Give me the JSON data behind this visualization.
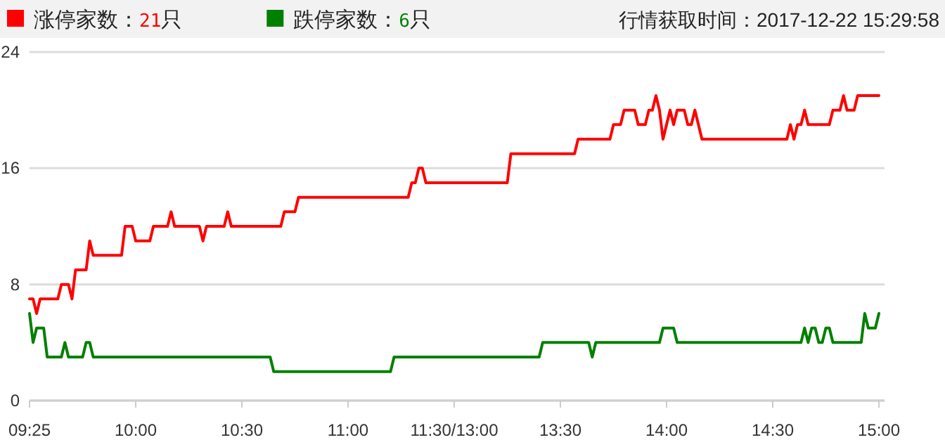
{
  "chart_data": {
    "type": "line",
    "annotations": [
      "行情获取时间：2017-12-22 15:29:58"
    ],
    "categories": [
      "09:25",
      null,
      null,
      null,
      null,
      null,
      null,
      null,
      null,
      null,
      null,
      null,
      null,
      null,
      null,
      null,
      null,
      null,
      null,
      null,
      null,
      null,
      null,
      null,
      null,
      null,
      null,
      null,
      null,
      null,
      "10:00",
      null,
      null,
      null,
      null,
      null,
      null,
      null,
      null,
      null,
      null,
      null,
      null,
      null,
      null,
      null,
      null,
      null,
      null,
      null,
      null,
      null,
      null,
      null,
      null,
      null,
      null,
      null,
      null,
      null,
      "10:30",
      null,
      null,
      null,
      null,
      null,
      null,
      null,
      null,
      null,
      null,
      null,
      null,
      null,
      null,
      null,
      null,
      null,
      null,
      null,
      null,
      null,
      null,
      null,
      null,
      null,
      null,
      null,
      null,
      null,
      "11:00",
      null,
      null,
      null,
      null,
      null,
      null,
      null,
      null,
      null,
      null,
      null,
      null,
      null,
      null,
      null,
      null,
      null,
      null,
      null,
      null,
      null,
      null,
      null,
      null,
      null,
      null,
      null,
      null,
      null,
      "11:30/13:00",
      null,
      null,
      null,
      null,
      null,
      null,
      null,
      null,
      null,
      null,
      null,
      null,
      null,
      null,
      null,
      null,
      null,
      null,
      null,
      null,
      null,
      null,
      null,
      null,
      null,
      null,
      null,
      null,
      null,
      "13:30",
      null,
      null,
      null,
      null,
      null,
      null,
      null,
      null,
      null,
      null,
      null,
      null,
      null,
      null,
      null,
      null,
      null,
      null,
      null,
      null,
      null,
      null,
      null,
      null,
      null,
      null,
      null,
      null,
      null,
      "14:00",
      null,
      null,
      null,
      null,
      null,
      null,
      null,
      null,
      null,
      null,
      null,
      null,
      null,
      null,
      null,
      null,
      null,
      null,
      null,
      null,
      null,
      null,
      null,
      null,
      null,
      null,
      null,
      null,
      null,
      "14:30",
      null,
      null,
      null,
      null,
      null,
      null,
      null,
      null,
      null,
      null,
      null,
      null,
      null,
      null,
      null,
      null,
      null,
      null,
      null,
      null,
      null,
      null,
      null,
      null,
      null,
      null,
      null,
      null,
      null,
      "15:00"
    ],
    "ylim": [
      0,
      24
    ],
    "yticks": [
      0,
      8,
      16,
      24
    ],
    "grid": "y",
    "legend": "top left",
    "line_style": "solid",
    "series": [
      {
        "name": "涨停家数：21只",
        "color": "#ff0000",
        "values": [
          7,
          7,
          6,
          7,
          7,
          7,
          7,
          7,
          7,
          8,
          8,
          8,
          7,
          9,
          9,
          9,
          9,
          11,
          10,
          10,
          10,
          10,
          10,
          10,
          10,
          10,
          10,
          12,
          12,
          12,
          11,
          11,
          11,
          11,
          11,
          12,
          12,
          12,
          12,
          12,
          13,
          12,
          12,
          12,
          12,
          12,
          12,
          12,
          12,
          11,
          12,
          12,
          12,
          12,
          12,
          12,
          13,
          12,
          12,
          12,
          12,
          12,
          12,
          12,
          12,
          12,
          12,
          12,
          12,
          12,
          12,
          12,
          13,
          13,
          13,
          13,
          14,
          14,
          14,
          14,
          14,
          14,
          14,
          14,
          14,
          14,
          14,
          14,
          14,
          14,
          14,
          14,
          14,
          14,
          14,
          14,
          14,
          14,
          14,
          14,
          14,
          14,
          14,
          14,
          14,
          14,
          14,
          14,
          15,
          15,
          16,
          16,
          15,
          15,
          15,
          15,
          15,
          15,
          15,
          15,
          15,
          15,
          15,
          15,
          15,
          15,
          15,
          15,
          15,
          15,
          15,
          15,
          15,
          15,
          15,
          15,
          17,
          17,
          17,
          17,
          17,
          17,
          17,
          17,
          17,
          17,
          17,
          17,
          17,
          17,
          17,
          17,
          17,
          17,
          17,
          18,
          18,
          18,
          18,
          18,
          18,
          18,
          18,
          18,
          18,
          19,
          19,
          19,
          20,
          20,
          20,
          20,
          19,
          19,
          19,
          20,
          20,
          21,
          20,
          18,
          19,
          20,
          19,
          20,
          20,
          20,
          19,
          19,
          20,
          19,
          18,
          18,
          18,
          18,
          18,
          18,
          18,
          18,
          18,
          18,
          18,
          18,
          18,
          18,
          18,
          18,
          18,
          18,
          18,
          18,
          18,
          18,
          18,
          18,
          18,
          19,
          18,
          19,
          19,
          20,
          19,
          19,
          19,
          19,
          19,
          19,
          19,
          20,
          20,
          20,
          21,
          20,
          20,
          20,
          21,
          21,
          21,
          21,
          21,
          21,
          21
        ]
      },
      {
        "name": "跌停家数：6只",
        "color": "#008000",
        "values": [
          6,
          4,
          5,
          5,
          5,
          3,
          3,
          3,
          3,
          3,
          4,
          3,
          3,
          3,
          3,
          3,
          4,
          4,
          3,
          3,
          3,
          3,
          3,
          3,
          3,
          3,
          3,
          3,
          3,
          3,
          3,
          3,
          3,
          3,
          3,
          3,
          3,
          3,
          3,
          3,
          3,
          3,
          3,
          3,
          3,
          3,
          3,
          3,
          3,
          3,
          3,
          3,
          3,
          3,
          3,
          3,
          3,
          3,
          3,
          3,
          3,
          3,
          3,
          3,
          3,
          3,
          3,
          3,
          3,
          2,
          2,
          2,
          2,
          2,
          2,
          2,
          2,
          2,
          2,
          2,
          2,
          2,
          2,
          2,
          2,
          2,
          2,
          2,
          2,
          2,
          2,
          2,
          2,
          2,
          2,
          2,
          2,
          2,
          2,
          2,
          2,
          2,
          2,
          3,
          3,
          3,
          3,
          3,
          3,
          3,
          3,
          3,
          3,
          3,
          3,
          3,
          3,
          3,
          3,
          3,
          3,
          3,
          3,
          3,
          3,
          3,
          3,
          3,
          3,
          3,
          3,
          3,
          3,
          3,
          3,
          3,
          3,
          3,
          3,
          3,
          3,
          3,
          3,
          3,
          3,
          4,
          4,
          4,
          4,
          4,
          4,
          4,
          4,
          4,
          4,
          4,
          4,
          4,
          4,
          3,
          4,
          4,
          4,
          4,
          4,
          4,
          4,
          4,
          4,
          4,
          4,
          4,
          4,
          4,
          4,
          4,
          4,
          4,
          4,
          5,
          5,
          5,
          5,
          4,
          4,
          4,
          4,
          4,
          4,
          4,
          4,
          4,
          4,
          4,
          4,
          4,
          4,
          4,
          4,
          4,
          4,
          4,
          4,
          4,
          4,
          4,
          4,
          4,
          4,
          4,
          4,
          4,
          4,
          4,
          4,
          4,
          4,
          4,
          4,
          5,
          4,
          5,
          5,
          4,
          4,
          5,
          5,
          4,
          4,
          4,
          4,
          4,
          4,
          4,
          4,
          4,
          6,
          5,
          5,
          5,
          6
        ]
      }
    ]
  }
}
